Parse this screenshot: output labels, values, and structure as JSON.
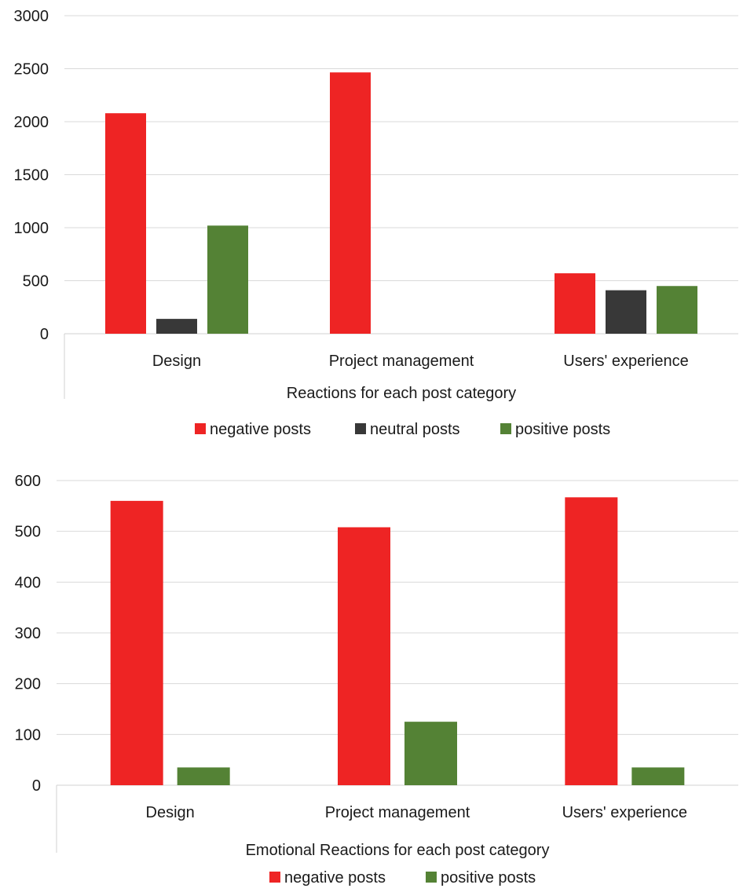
{
  "chart_data": [
    {
      "type": "bar",
      "categories": [
        "Design",
        "Project management",
        "Users' experience"
      ],
      "xlabel": "Reactions for each post category",
      "ylabel": "",
      "ylim": [
        0,
        3000
      ],
      "yticks": [
        0,
        500,
        1000,
        1500,
        2000,
        2500,
        3000
      ],
      "grid": true,
      "legend_position": "bottom",
      "series": [
        {
          "name": "negative posts",
          "color": "#ee2424",
          "values": [
            2080,
            2465,
            570
          ]
        },
        {
          "name": "neutral posts",
          "color": "#383838",
          "values": [
            140,
            0,
            410
          ]
        },
        {
          "name": "positive posts",
          "color": "#548235",
          "values": [
            1020,
            0,
            450
          ]
        }
      ]
    },
    {
      "type": "bar",
      "categories": [
        "Design",
        "Project management",
        "Users' experience"
      ],
      "xlabel": "Emotional Reactions for each post category",
      "ylabel": "",
      "ylim": [
        0,
        600
      ],
      "yticks": [
        0,
        100,
        200,
        300,
        400,
        500,
        600
      ],
      "grid": true,
      "legend_position": "bottom",
      "series": [
        {
          "name": "negative posts",
          "color": "#ee2424",
          "values": [
            560,
            508,
            567
          ]
        },
        {
          "name": "positive posts",
          "color": "#548235",
          "values": [
            35,
            125,
            35
          ]
        }
      ]
    }
  ]
}
